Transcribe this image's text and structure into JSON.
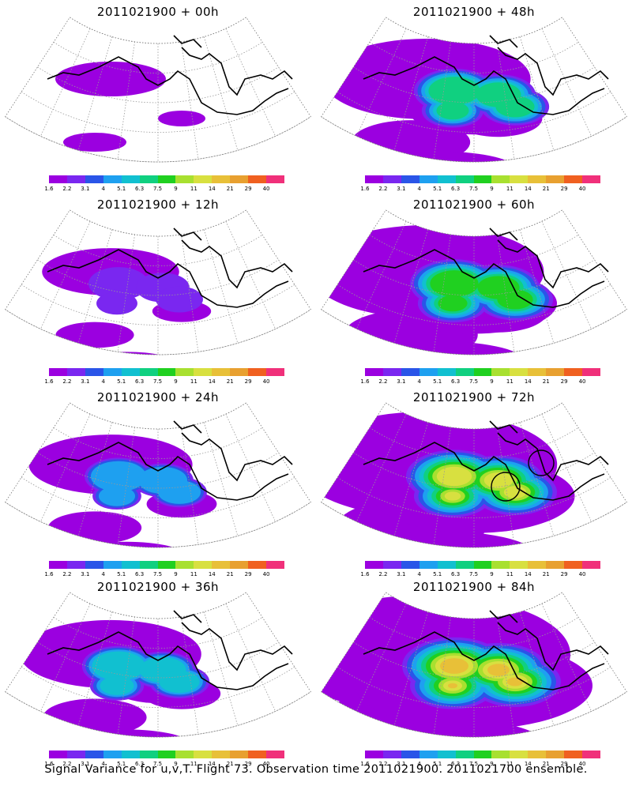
{
  "panels": [
    {
      "title": "2011021900 + 00h",
      "intensity": 0.0,
      "circles": false
    },
    {
      "title": "2011021900 + 48h",
      "intensity": 0.55,
      "circles": false
    },
    {
      "title": "2011021900 + 12h",
      "intensity": 0.15,
      "circles": false
    },
    {
      "title": "2011021900 + 60h",
      "intensity": 0.7,
      "circles": false
    },
    {
      "title": "2011021900 + 24h",
      "intensity": 0.3,
      "circles": false
    },
    {
      "title": "2011021900 + 72h",
      "intensity": 0.85,
      "circles": true
    },
    {
      "title": "2011021900 + 36h",
      "intensity": 0.4,
      "circles": false
    },
    {
      "title": "2011021900 + 84h",
      "intensity": 1.0,
      "circles": false
    }
  ],
  "colorbar": {
    "labels": [
      "1.6",
      "2.2",
      "3.1",
      "4",
      "5.1",
      "6.3",
      "7.5",
      "9",
      "11",
      "14",
      "21",
      "29",
      "40"
    ],
    "colors": [
      "#9b00e0",
      "#7a27f0",
      "#2a55e8",
      "#1ea0f0",
      "#11c0d0",
      "#10d080",
      "#20d020",
      "#a8e030",
      "#d8e040",
      "#e8c038",
      "#e8a030",
      "#f06020",
      "#f0307a"
    ]
  },
  "footer": "Signal Variance for u,v,T. Flight 73. Observation time 2011021900. 2011021700 ensemble."
}
